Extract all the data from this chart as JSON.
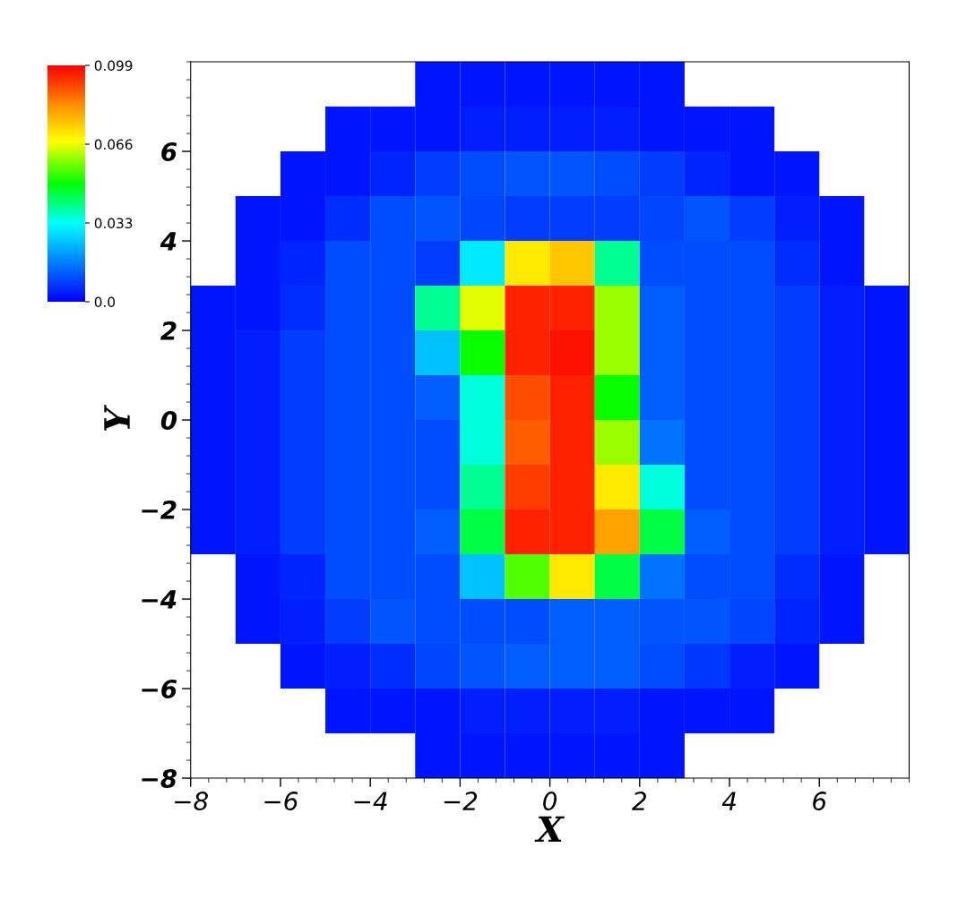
{
  "chart_data": {
    "type": "heatmap",
    "xlabel": "X",
    "ylabel": "Y",
    "xlim": [
      -8,
      8
    ],
    "ylim": [
      -8,
      8
    ],
    "xticks": [
      {
        "value": -8,
        "label": "−8"
      },
      {
        "value": -6,
        "label": "−6"
      },
      {
        "value": -4,
        "label": "−4"
      },
      {
        "value": -2,
        "label": "−2"
      },
      0,
      2,
      4,
      6
    ],
    "yticks": [
      {
        "value": -8,
        "label": "−8"
      },
      {
        "value": -6,
        "label": "−6"
      },
      {
        "value": -4,
        "label": "−4"
      },
      {
        "value": -2,
        "label": "−2"
      },
      0,
      2,
      4,
      6
    ],
    "clim": [
      0,
      0.099
    ],
    "cticks": [
      {
        "value": 0,
        "label": "0.0"
      },
      0.033,
      0.066,
      0.099
    ],
    "cells": [
      [
        null,
        null,
        null,
        null,
        null,
        0.003,
        0.003,
        0.003,
        0.003,
        0.003,
        0.003,
        null,
        null,
        null,
        null,
        null
      ],
      [
        null,
        null,
        null,
        0.003,
        0.003,
        0.003,
        0.004,
        0.004,
        0.004,
        0.004,
        0.003,
        0.003,
        0.003,
        null,
        null,
        null
      ],
      [
        null,
        null,
        0.003,
        0.003,
        0.005,
        0.008,
        0.01,
        0.011,
        0.011,
        0.01,
        0.008,
        0.005,
        0.003,
        0.003,
        null,
        null
      ],
      [
        null,
        0.003,
        0.003,
        0.006,
        0.01,
        0.011,
        0.009,
        0.008,
        0.008,
        0.008,
        0.009,
        0.011,
        0.008,
        0.004,
        0.003,
        null
      ],
      [
        null,
        0.003,
        0.005,
        0.01,
        0.01,
        0.008,
        0.03,
        0.07,
        0.075,
        0.04,
        0.01,
        0.01,
        0.01,
        0.006,
        0.003,
        null
      ],
      [
        0.003,
        0.003,
        0.006,
        0.01,
        0.01,
        0.04,
        0.065,
        0.095,
        0.095,
        0.06,
        0.012,
        0.01,
        0.01,
        0.008,
        0.004,
        0.003
      ],
      [
        0.003,
        0.004,
        0.008,
        0.01,
        0.01,
        0.025,
        0.05,
        0.095,
        0.097,
        0.06,
        0.012,
        0.01,
        0.01,
        0.008,
        0.004,
        0.003
      ],
      [
        0.003,
        0.004,
        0.008,
        0.01,
        0.01,
        0.012,
        0.035,
        0.09,
        0.095,
        0.05,
        0.012,
        0.01,
        0.01,
        0.008,
        0.004,
        0.003
      ],
      [
        0.003,
        0.004,
        0.008,
        0.01,
        0.01,
        0.01,
        0.035,
        0.088,
        0.095,
        0.06,
        0.015,
        0.01,
        0.01,
        0.008,
        0.004,
        0.003
      ],
      [
        0.003,
        0.004,
        0.008,
        0.01,
        0.01,
        0.01,
        0.04,
        0.092,
        0.095,
        0.07,
        0.035,
        0.01,
        0.01,
        0.008,
        0.004,
        0.003
      ],
      [
        0.003,
        0.004,
        0.008,
        0.01,
        0.01,
        0.012,
        0.045,
        0.095,
        0.095,
        0.08,
        0.045,
        0.012,
        0.01,
        0.008,
        0.004,
        0.003
      ],
      [
        null,
        0.003,
        0.005,
        0.01,
        0.01,
        0.01,
        0.025,
        0.055,
        0.07,
        0.045,
        0.015,
        0.01,
        0.01,
        0.006,
        0.003,
        null
      ],
      [
        null,
        0.003,
        0.004,
        0.008,
        0.011,
        0.01,
        0.01,
        0.01,
        0.012,
        0.012,
        0.011,
        0.011,
        0.009,
        0.005,
        0.003,
        null
      ],
      [
        null,
        null,
        0.003,
        0.004,
        0.006,
        0.009,
        0.011,
        0.012,
        0.012,
        0.012,
        0.01,
        0.007,
        0.004,
        0.003,
        null,
        null
      ],
      [
        null,
        null,
        null,
        0.003,
        0.003,
        0.003,
        0.004,
        0.004,
        0.004,
        0.004,
        0.003,
        0.003,
        0.003,
        null,
        null,
        null
      ],
      [
        null,
        null,
        null,
        null,
        null,
        0.003,
        0.003,
        0.003,
        0.003,
        0.003,
        0.003,
        null,
        null,
        null,
        null,
        null
      ]
    ]
  }
}
